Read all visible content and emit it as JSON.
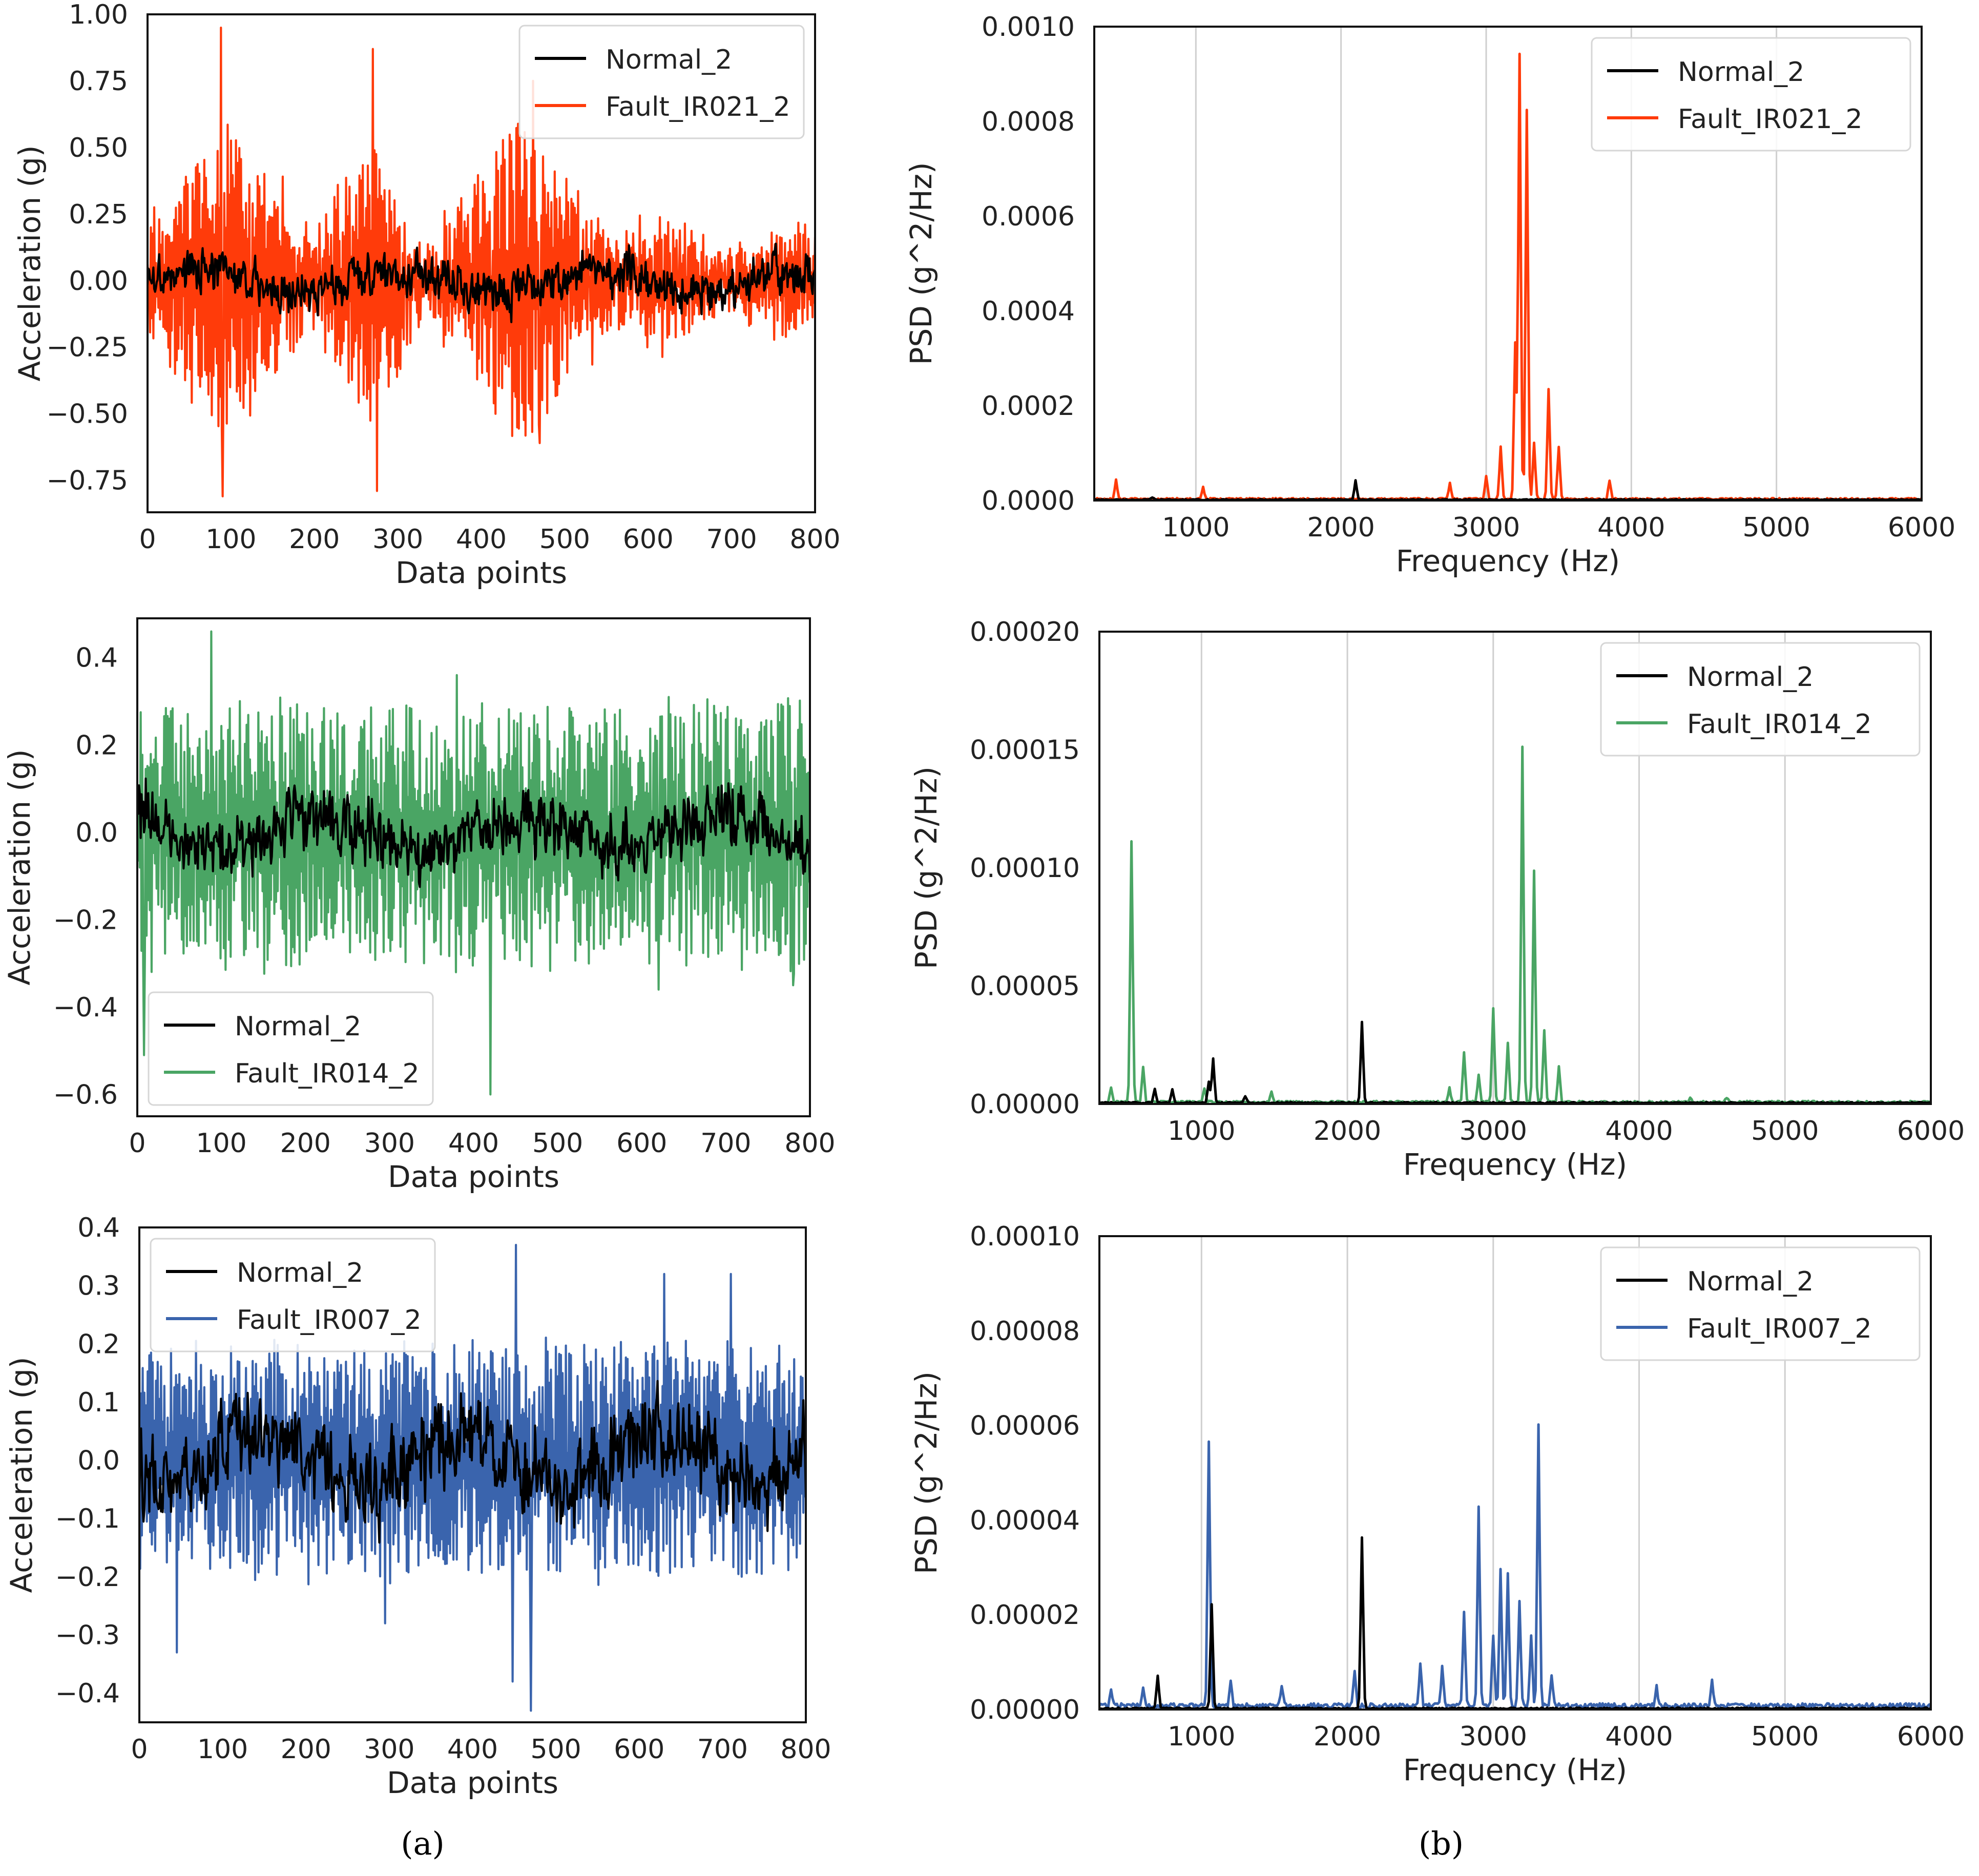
{
  "captions": {
    "a": "(a)",
    "b": "(b)"
  },
  "chart_data": [
    {
      "id": "time-ir021",
      "type": "line",
      "xlabel": "Data points",
      "ylabel": "Acceleration (g)",
      "xlim": [
        0,
        800
      ],
      "ylim": [
        -0.87,
        1.0
      ],
      "xticks": [
        0,
        100,
        200,
        300,
        400,
        500,
        600,
        700,
        800
      ],
      "xtick_labels": [
        "0",
        "100",
        "200",
        "300",
        "400",
        "500",
        "600",
        "700",
        "800"
      ],
      "yticks": [
        -0.75,
        -0.5,
        -0.25,
        0.0,
        0.25,
        0.5,
        0.75,
        1.0
      ],
      "ytick_labels": [
        "−0.75",
        "−0.50",
        "−0.25",
        "0.00",
        "0.25",
        "0.50",
        "0.75",
        "1.00"
      ],
      "grid": false,
      "legend": "top-right",
      "series": [
        {
          "name": "Normal_2",
          "color": "#000000",
          "kind": "time_normal",
          "amp": 0.14,
          "spikes": []
        },
        {
          "name": "Fault_IR021_2",
          "color": "#ff3b0a",
          "kind": "time_fault",
          "amp": 0.62,
          "env": [
            [
              0,
              0.35
            ],
            [
              90,
              1.0
            ],
            [
              200,
              0.3
            ],
            [
              280,
              1.0
            ],
            [
              330,
              0.15
            ],
            [
              450,
              1.0
            ],
            [
              560,
              0.25
            ],
            [
              620,
              0.4
            ],
            [
              700,
              0.2
            ],
            [
              800,
              0.35
            ]
          ],
          "spikes": [
            [
              88,
              0.95
            ],
            [
              90,
              -0.81
            ],
            [
              275,
              -0.79
            ],
            [
              270,
              0.87
            ],
            [
              462,
              0.75
            ],
            [
              470,
              -0.61
            ]
          ]
        }
      ]
    },
    {
      "id": "psd-ir021",
      "type": "line",
      "xlabel": "Frequency (Hz)",
      "ylabel": "PSD (g^2/Hz)",
      "xlim": [
        300,
        6000
      ],
      "ylim": [
        0,
        0.001
      ],
      "xticks": [
        1000,
        2000,
        3000,
        4000,
        5000,
        6000
      ],
      "xtick_labels": [
        "1000",
        "2000",
        "3000",
        "4000",
        "5000",
        "6000"
      ],
      "yticks": [
        0,
        0.0002,
        0.0004,
        0.0006,
        0.0008,
        0.001
      ],
      "ytick_labels": [
        "0.0000",
        "0.0002",
        "0.0004",
        "0.0006",
        "0.0008",
        "0.0010"
      ],
      "grid": "x",
      "legend": "top-right",
      "series": [
        {
          "name": "Normal_2",
          "color": "#000000",
          "kind": "psd",
          "floor": 2e-06,
          "peaks": [
            [
              700,
              5e-06
            ],
            [
              2100,
              4e-05
            ]
          ]
        },
        {
          "name": "Fault_IR021_2",
          "color": "#ff3b0a",
          "kind": "psd",
          "floor": 4e-06,
          "peaks": [
            [
              450,
              4e-05
            ],
            [
              1050,
              2.5e-05
            ],
            [
              2750,
              3.5e-05
            ],
            [
              3000,
              5e-05
            ],
            [
              3100,
              0.00011
            ],
            [
              3200,
              0.00033
            ],
            [
              3230,
              0.00094
            ],
            [
              3280,
              0.00082
            ],
            [
              3330,
              0.00012
            ],
            [
              3430,
              0.00023
            ],
            [
              3500,
              0.00011
            ],
            [
              3850,
              4e-05
            ]
          ]
        }
      ]
    },
    {
      "id": "time-ir014",
      "type": "line",
      "xlabel": "Data points",
      "ylabel": "Acceleration (g)",
      "xlim": [
        0,
        800
      ],
      "ylim": [
        -0.65,
        0.49
      ],
      "xticks": [
        0,
        100,
        200,
        300,
        400,
        500,
        600,
        700,
        800
      ],
      "xtick_labels": [
        "0",
        "100",
        "200",
        "300",
        "400",
        "500",
        "600",
        "700",
        "800"
      ],
      "yticks": [
        -0.6,
        -0.4,
        -0.2,
        0.0,
        0.2,
        0.4
      ],
      "ytick_labels": [
        "−0.6",
        "−0.4",
        "−0.2",
        "0.0",
        "0.2",
        "0.4"
      ],
      "grid": false,
      "legend": "bottom-left",
      "series": [
        {
          "name": "Normal_2",
          "color": "#000000",
          "kind": "time_normal",
          "amp": 0.13,
          "spikes": []
        },
        {
          "name": "Fault_IR014_2",
          "color": "#4aa564",
          "kind": "time_fault",
          "amp": 0.3,
          "env": [
            [
              0,
              1.0
            ],
            [
              800,
              1.0
            ]
          ],
          "spikes": [
            [
              420,
              -0.6
            ],
            [
              88,
              0.46
            ],
            [
              8,
              -0.51
            ],
            [
              380,
              0.36
            ],
            [
              620,
              -0.36
            ],
            [
              780,
              -0.35
            ]
          ]
        }
      ]
    },
    {
      "id": "psd-ir014",
      "type": "line",
      "xlabel": "Frequency (Hz)",
      "ylabel": "PSD (g^2/Hz)",
      "xlim": [
        300,
        6000
      ],
      "ylim": [
        0,
        0.0002
      ],
      "xticks": [
        1000,
        2000,
        3000,
        4000,
        5000,
        6000
      ],
      "xtick_labels": [
        "1000",
        "2000",
        "3000",
        "4000",
        "5000",
        "6000"
      ],
      "yticks": [
        0,
        5e-05,
        0.0001,
        0.00015,
        0.0002
      ],
      "ytick_labels": [
        "0.00000",
        "0.00005",
        "0.00010",
        "0.00015",
        "0.00020"
      ],
      "grid": "x",
      "legend": "top-right",
      "series": [
        {
          "name": "Normal_2",
          "color": "#000000",
          "kind": "psd",
          "floor": 6e-07,
          "peaks": [
            [
              680,
              6e-06
            ],
            [
              800,
              6e-06
            ],
            [
              1050,
              9e-06
            ],
            [
              1080,
              1.9e-05
            ],
            [
              1300,
              3e-06
            ],
            [
              2100,
              3.4e-05
            ]
          ]
        },
        {
          "name": "Fault_IR014_2",
          "color": "#4aa564",
          "kind": "psd",
          "floor": 1e-06,
          "peaks": [
            [
              380,
              6e-06
            ],
            [
              520,
              0.00011
            ],
            [
              600,
              1.5e-05
            ],
            [
              1020,
              6e-06
            ],
            [
              1480,
              4e-06
            ],
            [
              2700,
              6e-06
            ],
            [
              2800,
              2.1e-05
            ],
            [
              2900,
              1.2e-05
            ],
            [
              3000,
              4e-05
            ],
            [
              3100,
              2.5e-05
            ],
            [
              3200,
              0.00015
            ],
            [
              3280,
              9.8e-05
            ],
            [
              3350,
              3e-05
            ],
            [
              3450,
              1.5e-05
            ],
            [
              4350,
              2e-06
            ],
            [
              4600,
              2e-06
            ]
          ]
        }
      ]
    },
    {
      "id": "time-ir007",
      "type": "line",
      "xlabel": "Data points",
      "ylabel": "Acceleration (g)",
      "xlim": [
        0,
        800
      ],
      "ylim": [
        -0.45,
        0.4
      ],
      "xticks": [
        0,
        100,
        200,
        300,
        400,
        500,
        600,
        700,
        800
      ],
      "xtick_labels": [
        "0",
        "100",
        "200",
        "300",
        "400",
        "500",
        "600",
        "700",
        "800"
      ],
      "yticks": [
        -0.4,
        -0.3,
        -0.2,
        -0.1,
        0.0,
        0.1,
        0.2,
        0.3,
        0.4
      ],
      "ytick_labels": [
        "−0.4",
        "−0.3",
        "−0.2",
        "−0.1",
        "0.0",
        "0.1",
        "0.2",
        "0.3",
        "0.4"
      ],
      "grid": false,
      "legend": "top-left",
      "series": [
        {
          "name": "Normal_2",
          "color": "#000000",
          "kind": "time_normal",
          "amp": 0.13,
          "spikes": []
        },
        {
          "name": "Fault_IR007_2",
          "color": "#3a64ad",
          "kind": "time_fault",
          "amp": 0.2,
          "env": [
            [
              0,
              1.0
            ],
            [
              800,
              1.0
            ]
          ],
          "spikes": [
            [
              452,
              0.37
            ],
            [
              470,
              -0.43
            ],
            [
              448,
              -0.38
            ],
            [
              630,
              0.32
            ],
            [
              710,
              0.32
            ],
            [
              45,
              -0.33
            ],
            [
              295,
              -0.28
            ]
          ]
        }
      ]
    },
    {
      "id": "psd-ir007",
      "type": "line",
      "xlabel": "Frequency (Hz)",
      "ylabel": "PSD (g^2/Hz)",
      "xlim": [
        300,
        6000
      ],
      "ylim": [
        0,
        0.0001
      ],
      "xticks": [
        1000,
        2000,
        3000,
        4000,
        5000,
        6000
      ],
      "xtick_labels": [
        "1000",
        "2000",
        "3000",
        "4000",
        "5000",
        "6000"
      ],
      "yticks": [
        0,
        2e-05,
        4e-05,
        6e-05,
        8e-05,
        0.0001
      ],
      "ytick_labels": [
        "0.00000",
        "0.00002",
        "0.00004",
        "0.00006",
        "0.00008",
        "0.00010"
      ],
      "grid": "x",
      "legend": "top-right",
      "series": [
        {
          "name": "Normal_2",
          "color": "#000000",
          "kind": "psd",
          "floor": 3e-07,
          "peaks": [
            [
              700,
              7e-06
            ],
            [
              1070,
              2.2e-05
            ],
            [
              2100,
              3.6e-05
            ]
          ]
        },
        {
          "name": "Fault_IR007_2",
          "color": "#3a64ad",
          "kind": "psd",
          "floor": 1e-06,
          "peaks": [
            [
              380,
              3e-06
            ],
            [
              600,
              4e-06
            ],
            [
              1050,
              5.6e-05
            ],
            [
              1200,
              5e-06
            ],
            [
              1550,
              4e-06
            ],
            [
              2050,
              7e-06
            ],
            [
              2500,
              9e-06
            ],
            [
              2650,
              8e-06
            ],
            [
              2800,
              2e-05
            ],
            [
              2900,
              4.2e-05
            ],
            [
              3000,
              1.5e-05
            ],
            [
              3050,
              2.9e-05
            ],
            [
              3100,
              2.8e-05
            ],
            [
              3180,
              2.2e-05
            ],
            [
              3260,
              1.5e-05
            ],
            [
              3310,
              5.9e-05
            ],
            [
              3400,
              6e-06
            ],
            [
              4120,
              4e-06
            ],
            [
              4500,
              5e-06
            ]
          ]
        }
      ]
    }
  ]
}
